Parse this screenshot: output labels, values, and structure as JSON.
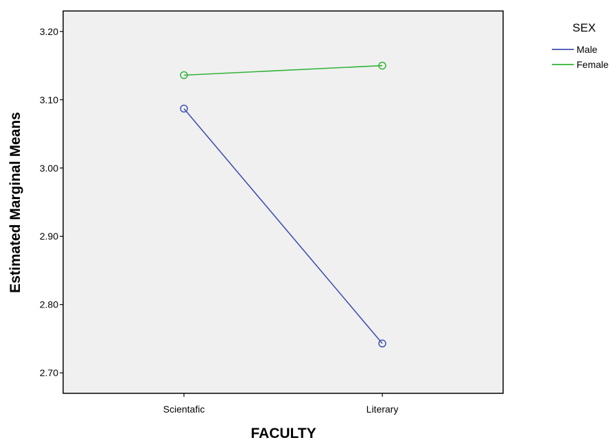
{
  "chart_data": {
    "type": "line",
    "xlabel": "FACULTY",
    "ylabel": "Estimated Marginal Means",
    "categories": [
      "Scientafic",
      "Literary"
    ],
    "ylim": [
      2.67,
      3.23
    ],
    "yticks": [
      "2.70",
      "2.80",
      "2.90",
      "3.00",
      "3.10",
      "3.20"
    ],
    "grid": false,
    "legend": {
      "title": "SEX",
      "placement": "top-right"
    },
    "series": [
      {
        "name": "Male",
        "values": [
          3.087,
          2.743
        ],
        "color": "#3f51b1",
        "marker": "open-circle"
      },
      {
        "name": "Female",
        "values": [
          3.136,
          3.15
        ],
        "color": "#2fb336",
        "marker": "open-circle"
      }
    ],
    "plot_background": "#f0f0f0"
  }
}
